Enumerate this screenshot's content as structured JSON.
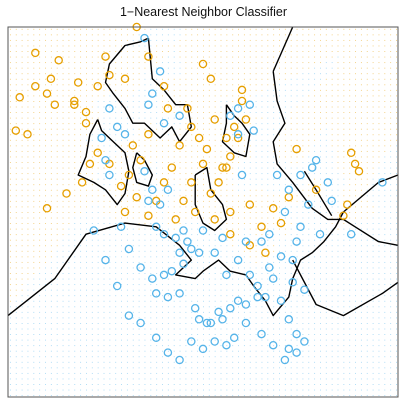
{
  "chart_data": {
    "type": "scatter",
    "title": "1−Nearest Neighbor Classifier",
    "xlabel": "",
    "ylabel": "",
    "grid": false,
    "legend": "none",
    "xlim": [
      0,
      100
    ],
    "ylim": [
      0,
      100
    ],
    "colors": {
      "orange": "#E69F00",
      "blue": "#56B4E9",
      "boundary": "#000000",
      "frame": "#555555"
    },
    "series": [
      {
        "color": "orange",
        "points": [
          [
            7,
            93
          ],
          [
            13,
            91
          ],
          [
            11,
            86
          ],
          [
            7,
            84
          ],
          [
            10,
            82
          ],
          [
            3,
            81
          ],
          [
            2,
            72
          ],
          [
            5,
            71
          ],
          [
            12,
            79
          ],
          [
            17,
            79
          ],
          [
            18,
            85
          ],
          [
            23,
            84
          ],
          [
            20,
            74
          ],
          [
            23,
            66
          ],
          [
            26,
            63
          ],
          [
            21,
            63
          ],
          [
            19,
            58
          ],
          [
            15,
            55
          ],
          [
            10,
            51
          ],
          [
            17,
            80
          ],
          [
            20,
            77
          ],
          [
            26,
            87
          ],
          [
            25,
            92
          ],
          [
            33,
            100
          ],
          [
            30,
            86
          ],
          [
            36,
            92
          ],
          [
            40,
            84
          ],
          [
            41,
            78
          ],
          [
            36,
            71
          ],
          [
            32,
            68
          ],
          [
            34,
            64
          ],
          [
            31,
            60
          ],
          [
            29,
            57
          ],
          [
            33,
            54
          ],
          [
            30,
            50
          ],
          [
            36,
            49
          ],
          [
            38,
            53
          ],
          [
            40,
            58
          ],
          [
            42,
            62
          ],
          [
            44,
            68
          ],
          [
            47,
            73
          ],
          [
            46,
            78
          ],
          [
            49,
            70
          ],
          [
            51,
            67
          ],
          [
            50,
            63
          ],
          [
            47,
            58
          ],
          [
            45,
            53
          ],
          [
            43,
            48
          ],
          [
            48,
            50
          ],
          [
            52,
            55
          ],
          [
            54,
            58
          ],
          [
            55,
            62
          ],
          [
            57,
            65
          ],
          [
            56,
            70
          ],
          [
            58,
            73
          ],
          [
            59,
            70
          ],
          [
            53,
            75
          ],
          [
            61,
            75
          ],
          [
            60,
            83
          ],
          [
            52,
            86
          ],
          [
            50,
            90
          ],
          [
            56,
            62
          ],
          [
            53,
            48
          ],
          [
            57,
            44
          ],
          [
            62,
            41
          ],
          [
            66,
            39
          ],
          [
            68,
            51
          ],
          [
            70,
            47
          ],
          [
            65,
            46
          ],
          [
            62,
            52
          ],
          [
            57,
            50
          ],
          [
            72,
            54
          ],
          [
            79,
            56
          ],
          [
            88,
            66
          ],
          [
            89,
            63
          ],
          [
            90,
            61
          ],
          [
            87,
            52
          ],
          [
            86,
            49
          ],
          [
            74,
            67
          ],
          [
            60,
            80
          ]
        ]
      },
      {
        "color": "blue",
        "points": [
          [
            35,
            97
          ],
          [
            39,
            88
          ],
          [
            37,
            82
          ],
          [
            36,
            79
          ],
          [
            40,
            74
          ],
          [
            44,
            76
          ],
          [
            26,
            78
          ],
          [
            28,
            73
          ],
          [
            30,
            71
          ],
          [
            24,
            70
          ],
          [
            26,
            60
          ],
          [
            25,
            64
          ],
          [
            35,
            61
          ],
          [
            37,
            56
          ],
          [
            41,
            56
          ],
          [
            39,
            52
          ],
          [
            36,
            53
          ],
          [
            38,
            46
          ],
          [
            40,
            44
          ],
          [
            43,
            43
          ],
          [
            45,
            45
          ],
          [
            46,
            42
          ],
          [
            47,
            40
          ],
          [
            44,
            39
          ],
          [
            49,
            39
          ],
          [
            45,
            36
          ],
          [
            42,
            34
          ],
          [
            40,
            33
          ],
          [
            37,
            32
          ],
          [
            38,
            28
          ],
          [
            41,
            27
          ],
          [
            44,
            28
          ],
          [
            48,
            24
          ],
          [
            49,
            21
          ],
          [
            51,
            20
          ],
          [
            52,
            20
          ],
          [
            54,
            23
          ],
          [
            55,
            21
          ],
          [
            57,
            24
          ],
          [
            59,
            26
          ],
          [
            61,
            25
          ],
          [
            64,
            27
          ],
          [
            66,
            27
          ],
          [
            68,
            32
          ],
          [
            70,
            26
          ],
          [
            72,
            21
          ],
          [
            74,
            17
          ],
          [
            76,
            15
          ],
          [
            72,
            13
          ],
          [
            74,
            12
          ],
          [
            71,
            10
          ],
          [
            68,
            14
          ],
          [
            65,
            17
          ],
          [
            61,
            20
          ],
          [
            58,
            16
          ],
          [
            56,
            14
          ],
          [
            53,
            15
          ],
          [
            50,
            13
          ],
          [
            47,
            15
          ],
          [
            44,
            10
          ],
          [
            41,
            12
          ],
          [
            38,
            16
          ],
          [
            34,
            20
          ],
          [
            31,
            22
          ],
          [
            28,
            30
          ],
          [
            25,
            37
          ],
          [
            22,
            45
          ],
          [
            29,
            46
          ],
          [
            31,
            40
          ],
          [
            34,
            35
          ],
          [
            50,
            45
          ],
          [
            53,
            39
          ],
          [
            56,
            33
          ],
          [
            59,
            37
          ],
          [
            62,
            33
          ],
          [
            64,
            30
          ],
          [
            67,
            35
          ],
          [
            70,
            38
          ],
          [
            73,
            37
          ],
          [
            74,
            42
          ],
          [
            75,
            46
          ],
          [
            71,
            50
          ],
          [
            69,
            60
          ],
          [
            72,
            56
          ],
          [
            75,
            60
          ],
          [
            78,
            62
          ],
          [
            77,
            52
          ],
          [
            80,
            44
          ],
          [
            83,
            53
          ],
          [
            79,
            64
          ],
          [
            82,
            58
          ],
          [
            88,
            44
          ],
          [
            96,
            58
          ],
          [
            73,
            31
          ],
          [
            76,
            29
          ],
          [
            59,
            71
          ],
          [
            57,
            76
          ],
          [
            59,
            78
          ],
          [
            62,
            79
          ],
          [
            63,
            72
          ],
          [
            60,
            60
          ],
          [
            55,
            43
          ],
          [
            61,
            42
          ],
          [
            65,
            42
          ],
          [
            67,
            44
          ]
        ]
      }
    ],
    "boundaries": [
      [
        [
          0,
          22
        ],
        [
          12,
          32
        ],
        [
          20,
          44
        ],
        [
          30,
          47
        ],
        [
          38,
          46
        ],
        [
          44,
          41
        ],
        [
          47,
          37
        ],
        [
          43,
          33
        ],
        [
          48,
          32
        ],
        [
          50,
          34
        ],
        [
          54,
          37
        ],
        [
          57,
          34
        ],
        [
          61,
          33
        ],
        [
          63,
          30
        ],
        [
          66,
          26
        ],
        [
          68,
          22
        ],
        [
          72,
          27
        ],
        [
          73,
          32
        ],
        [
          75,
          37
        ],
        [
          78,
          39
        ],
        [
          81,
          42
        ],
        [
          84,
          46
        ],
        [
          86,
          50
        ],
        [
          95,
          58
        ],
        [
          100,
          60
        ]
      ],
      [
        [
          68,
          88
        ],
        [
          73,
          100
        ]
      ],
      [
        [
          68,
          88
        ],
        [
          69,
          80
        ],
        [
          71,
          74
        ],
        [
          68,
          69
        ],
        [
          69,
          63
        ],
        [
          73,
          58
        ],
        [
          78,
          51
        ],
        [
          82,
          48
        ],
        [
          86,
          48
        ],
        [
          89,
          46
        ],
        [
          95,
          42
        ],
        [
          100,
          41
        ]
      ],
      [
        [
          73,
          37
        ],
        [
          79,
          25
        ],
        [
          86,
          22
        ],
        [
          96,
          28
        ],
        [
          100,
          31
        ]
      ],
      [
        [
          83,
          49
        ],
        [
          79,
          56
        ],
        [
          76,
          61
        ]
      ],
      [
        [
          36,
          97
        ],
        [
          37,
          86
        ],
        [
          40,
          83
        ],
        [
          43,
          79
        ],
        [
          46,
          79
        ],
        [
          47,
          73
        ],
        [
          44,
          69
        ],
        [
          42,
          73
        ],
        [
          39,
          70
        ],
        [
          37,
          72
        ],
        [
          35,
          74
        ],
        [
          32,
          74
        ],
        [
          30,
          78
        ],
        [
          27,
          82
        ],
        [
          25,
          85
        ],
        [
          26,
          90
        ],
        [
          30,
          95
        ],
        [
          34,
          96
        ],
        [
          36,
          97
        ]
      ],
      [
        [
          23,
          75
        ],
        [
          21,
          71
        ],
        [
          20,
          65
        ],
        [
          18,
          60
        ],
        [
          22,
          58
        ],
        [
          25,
          56
        ],
        [
          28,
          52
        ],
        [
          30,
          55
        ],
        [
          31,
          61
        ],
        [
          30,
          66
        ],
        [
          27,
          69
        ],
        [
          24,
          72
        ],
        [
          23,
          75
        ]
      ],
      [
        [
          33,
          66
        ],
        [
          35,
          64
        ],
        [
          37,
          60
        ],
        [
          36,
          57
        ],
        [
          33,
          58
        ],
        [
          32,
          62
        ],
        [
          33,
          66
        ]
      ],
      [
        [
          56,
          79
        ],
        [
          58,
          76
        ],
        [
          60,
          74
        ],
        [
          62,
          71
        ],
        [
          61,
          65
        ],
        [
          58,
          66
        ],
        [
          55,
          69
        ],
        [
          56,
          74
        ],
        [
          56,
          79
        ]
      ],
      [
        [
          48,
          60
        ],
        [
          51,
          62
        ],
        [
          52,
          56
        ],
        [
          55,
          52
        ],
        [
          56,
          48
        ],
        [
          53,
          45
        ],
        [
          50,
          47
        ],
        [
          48,
          52
        ],
        [
          48,
          60
        ]
      ]
    ]
  }
}
